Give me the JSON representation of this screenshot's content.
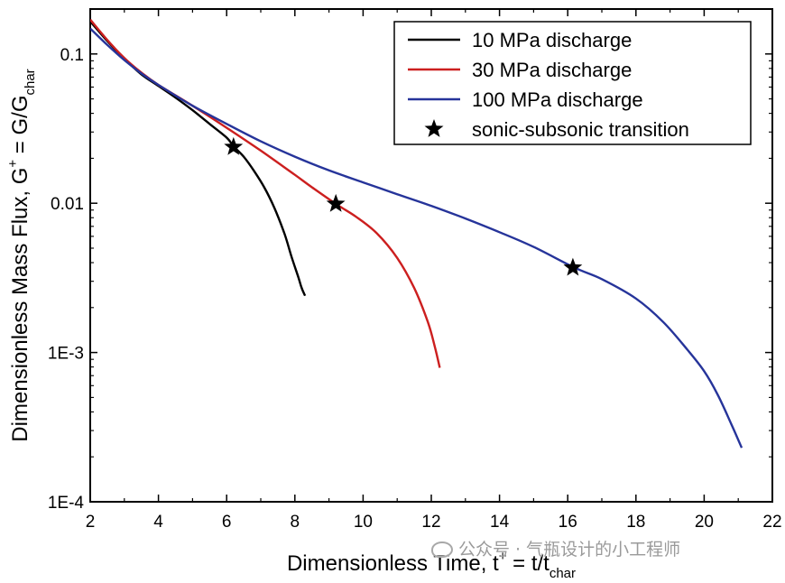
{
  "chart_data": {
    "type": "line",
    "xlabel": "Dimensionless Time, t+ = t/tchar",
    "ylabel": "Dimensionless Mass Flux, G+ = G/Gchar",
    "xlim": [
      2,
      22
    ],
    "ylim": [
      0.0001,
      0.2
    ],
    "yscale": "log",
    "grid": false,
    "legend_position": "top-right",
    "x_ticks": [
      2,
      4,
      6,
      8,
      10,
      12,
      14,
      16,
      18,
      20,
      22
    ],
    "x_tick_labels": [
      "2",
      "4",
      "6",
      "8",
      "10",
      "12",
      "14",
      "16",
      "18",
      "20",
      "22"
    ],
    "y_ticks": [
      0.0001,
      0.001,
      0.01,
      0.1
    ],
    "y_tick_labels": [
      "1E-4",
      "1E-3",
      "0.01",
      "0.1"
    ],
    "series": [
      {
        "name": "10 MPa discharge",
        "color": "#000000",
        "x": [
          2.0,
          2.5,
          3.0,
          3.5,
          4.0,
          4.5,
          5.0,
          5.5,
          6.0,
          6.2,
          6.5,
          6.8,
          7.1,
          7.4,
          7.7,
          7.9,
          8.1,
          8.2,
          8.3
        ],
        "y": [
          0.165,
          0.122,
          0.093,
          0.073,
          0.061,
          0.051,
          0.042,
          0.034,
          0.0275,
          0.0241,
          0.0205,
          0.0165,
          0.0128,
          0.0093,
          0.0062,
          0.0044,
          0.0032,
          0.0027,
          0.0024
        ]
      },
      {
        "name": "30 MPa discharge",
        "color": "#cc1f1f",
        "x": [
          2.0,
          2.5,
          3.0,
          3.5,
          4.0,
          5.0,
          6.0,
          7.0,
          8.0,
          8.5,
          9.2,
          9.8,
          10.4,
          11.0,
          11.5,
          11.9,
          12.1,
          12.25
        ],
        "y": [
          0.17,
          0.124,
          0.094,
          0.075,
          0.062,
          0.045,
          0.032,
          0.0225,
          0.0155,
          0.0128,
          0.0099,
          0.0081,
          0.0063,
          0.0043,
          0.0027,
          0.0016,
          0.0011,
          0.00079
        ]
      },
      {
        "name": "100 MPa discharge",
        "color": "#26349a",
        "x": [
          2.0,
          2.5,
          3.0,
          3.5,
          4.0,
          5.0,
          6.0,
          7.0,
          8.0,
          9.0,
          10.0,
          11.0,
          12.0,
          13.0,
          14.0,
          15.0,
          16.2,
          17.0,
          18.0,
          18.8,
          19.5,
          20.0,
          20.4,
          20.8,
          21.1
        ],
        "y": [
          0.148,
          0.115,
          0.091,
          0.074,
          0.062,
          0.045,
          0.034,
          0.026,
          0.0205,
          0.0166,
          0.0138,
          0.0115,
          0.0096,
          0.0079,
          0.0064,
          0.0051,
          0.0037,
          0.0031,
          0.0023,
          0.0016,
          0.00105,
          0.00075,
          0.00052,
          0.00033,
          0.00023
        ]
      }
    ],
    "markers": {
      "name": "sonic-subsonic transition",
      "symbol": "star",
      "color": "#000000",
      "points": [
        {
          "x": 6.2,
          "y": 0.0238
        },
        {
          "x": 9.2,
          "y": 0.0099
        },
        {
          "x": 16.15,
          "y": 0.0037
        }
      ]
    }
  },
  "axes": {
    "xlabel_main": "Dimensionless Time, t",
    "xlabel_sup": "+",
    "xlabel_mid": " = t/t",
    "xlabel_sub": "char",
    "ylabel_main": "Dimensionless Mass Flux, G",
    "ylabel_sup": "+",
    "ylabel_mid": " = G/G",
    "ylabel_sub": "char"
  },
  "watermark": {
    "text": "公众号 · 气瓶设计的小工程师",
    "icon": "wechat-icon"
  }
}
